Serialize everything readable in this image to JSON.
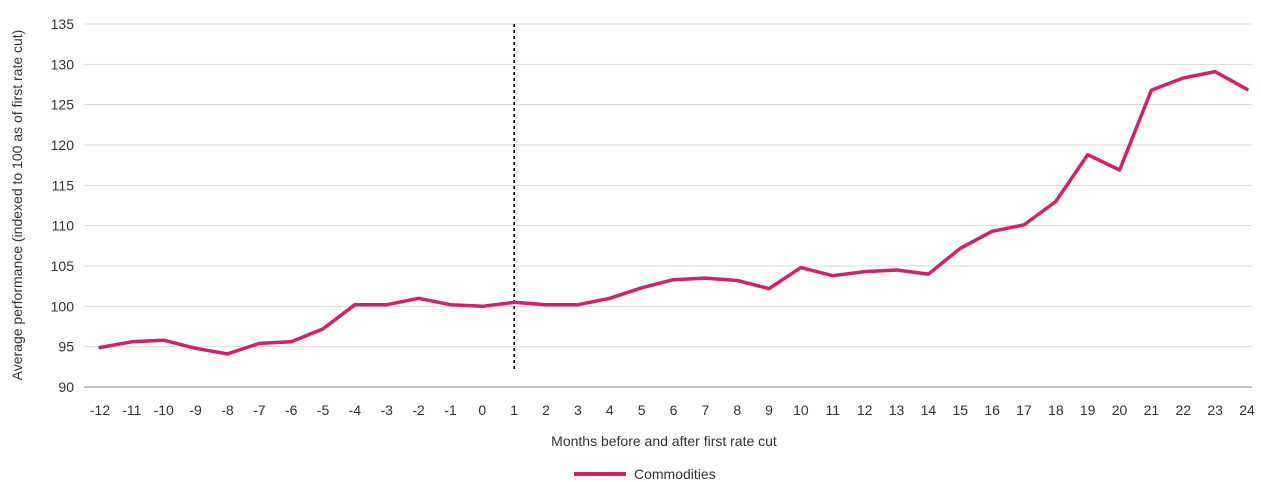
{
  "chart_data": {
    "type": "line",
    "xlabel": "Months before and after first rate cut",
    "ylabel": "Average performance (indexed to 100 as of first rate cut)",
    "ylim": [
      90,
      135
    ],
    "y_ticks": [
      90,
      95,
      100,
      105,
      110,
      115,
      120,
      125,
      130,
      135
    ],
    "categories": [
      "-12",
      "-11",
      "-10",
      "-9",
      "-8",
      "-7",
      "-6",
      "-5",
      "-4",
      "-3",
      "-2",
      "-1",
      "0",
      "1",
      "2",
      "3",
      "4",
      "5",
      "6",
      "7",
      "8",
      "9",
      "10",
      "11",
      "12",
      "13",
      "14",
      "15",
      "16",
      "17",
      "18",
      "19",
      "20",
      "21",
      "22",
      "23",
      "24"
    ],
    "series": [
      {
        "name": "Commodities",
        "color": "#d4206a",
        "values": [
          94.9,
          95.6,
          95.8,
          94.8,
          94.1,
          95.4,
          95.6,
          97.2,
          100.2,
          100.2,
          101.0,
          100.2,
          100.0,
          100.5,
          100.2,
          100.2,
          101.0,
          102.3,
          103.3,
          103.5,
          103.2,
          102.2,
          104.8,
          103.8,
          104.3,
          104.5,
          104.0,
          107.2,
          109.3,
          110.1,
          113.0,
          118.8,
          116.9,
          126.8,
          128.3,
          129.1,
          126.9
        ]
      }
    ],
    "marker_line": {
      "x": "1",
      "style": "dashed",
      "color": "#000000"
    },
    "grid": "horizontal",
    "legend_position": "bottom-center"
  }
}
